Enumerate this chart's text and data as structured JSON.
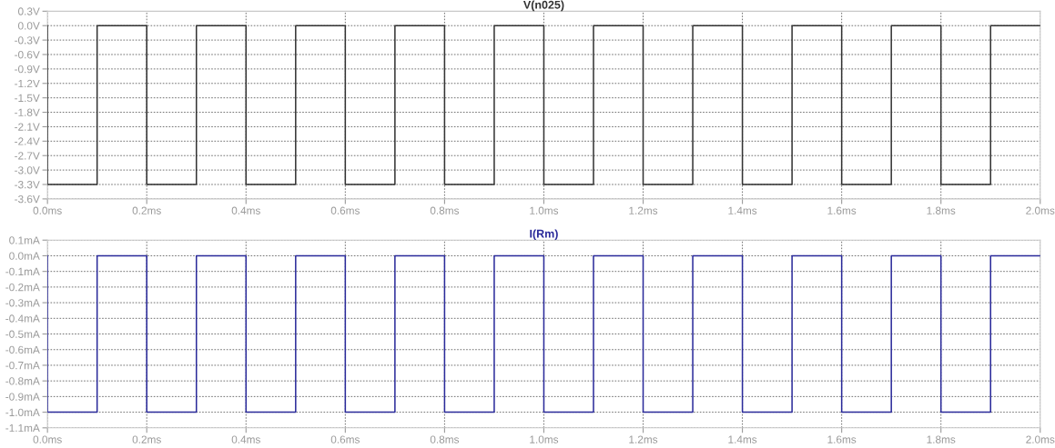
{
  "chart_data": [
    {
      "type": "line",
      "title": "V(n025)",
      "xlim": [
        0,
        2
      ],
      "ylim": [
        -3.6,
        0.3
      ],
      "grid": true,
      "line_style": "solid",
      "xticks": [
        {
          "value": 0,
          "label": "0.0ms"
        },
        {
          "value": 0.2,
          "label": "0.2ms"
        },
        {
          "value": 0.4,
          "label": "0.4ms"
        },
        {
          "value": 0.6,
          "label": "0.6ms"
        },
        {
          "value": 0.8,
          "label": "0.8ms"
        },
        {
          "value": 1.0,
          "label": "1.0ms"
        },
        {
          "value": 1.2,
          "label": "1.2ms"
        },
        {
          "value": 1.4,
          "label": "1.4ms"
        },
        {
          "value": 1.6,
          "label": "1.6ms"
        },
        {
          "value": 1.8,
          "label": "1.8ms"
        },
        {
          "value": 2.0,
          "label": "2.0ms"
        }
      ],
      "yticks": [
        {
          "value": 0.3,
          "label": "0.3V"
        },
        {
          "value": 0.0,
          "label": "0.0V"
        },
        {
          "value": -0.3,
          "label": "-0.3V"
        },
        {
          "value": -0.6,
          "label": "-0.6V"
        },
        {
          "value": -0.9,
          "label": "-0.9V"
        },
        {
          "value": -1.2,
          "label": "-1.2V"
        },
        {
          "value": -1.5,
          "label": "-1.5V"
        },
        {
          "value": -1.8,
          "label": "-1.8V"
        },
        {
          "value": -2.1,
          "label": "-2.1V"
        },
        {
          "value": -2.4,
          "label": "-2.4V"
        },
        {
          "value": -2.7,
          "label": "-2.7V"
        },
        {
          "value": -3.0,
          "label": "-3.0V"
        },
        {
          "value": -3.3,
          "label": "-3.3V"
        },
        {
          "value": -3.6,
          "label": "-3.6V"
        }
      ],
      "series": [
        {
          "color": "#333333",
          "x": [
            0,
            0,
            0.1,
            0.1,
            0.2,
            0.2,
            0.3,
            0.3,
            0.4,
            0.4,
            0.5,
            0.5,
            0.6,
            0.6,
            0.7,
            0.7,
            0.8,
            0.8,
            0.9,
            0.9,
            1.0,
            1.0,
            1.1,
            1.1,
            1.2,
            1.2,
            1.3,
            1.3,
            1.4,
            1.4,
            1.5,
            1.5,
            1.6,
            1.6,
            1.7,
            1.7,
            1.8,
            1.8,
            1.9,
            1.9,
            2.0
          ],
          "values": [
            0,
            -3.3,
            -3.3,
            0,
            0,
            -3.3,
            -3.3,
            0,
            0,
            -3.3,
            -3.3,
            0,
            0,
            -3.3,
            -3.3,
            0,
            0,
            -3.3,
            -3.3,
            0,
            0,
            -3.3,
            -3.3,
            0,
            0,
            -3.3,
            -3.3,
            0,
            0,
            -3.3,
            -3.3,
            0,
            0,
            -3.3,
            -3.3,
            0,
            0,
            -3.3,
            -3.3,
            0,
            0
          ]
        }
      ]
    },
    {
      "type": "line",
      "title": "I(Rm)",
      "xlim": [
        0,
        2
      ],
      "ylim": [
        -1.1,
        0.1
      ],
      "grid": true,
      "line_style": "solid",
      "xticks": [
        {
          "value": 0,
          "label": "0.0ms"
        },
        {
          "value": 0.2,
          "label": "0.2ms"
        },
        {
          "value": 0.4,
          "label": "0.4ms"
        },
        {
          "value": 0.6,
          "label": "0.6ms"
        },
        {
          "value": 0.8,
          "label": "0.8ms"
        },
        {
          "value": 1.0,
          "label": "1.0ms"
        },
        {
          "value": 1.2,
          "label": "1.2ms"
        },
        {
          "value": 1.4,
          "label": "1.4ms"
        },
        {
          "value": 1.6,
          "label": "1.6ms"
        },
        {
          "value": 1.8,
          "label": "1.8ms"
        },
        {
          "value": 2.0,
          "label": "2.0ms"
        }
      ],
      "yticks": [
        {
          "value": 0.1,
          "label": "0.1mA"
        },
        {
          "value": 0.0,
          "label": "0.0mA"
        },
        {
          "value": -0.1,
          "label": "-0.1mA"
        },
        {
          "value": -0.2,
          "label": "-0.2mA"
        },
        {
          "value": -0.3,
          "label": "-0.3mA"
        },
        {
          "value": -0.4,
          "label": "-0.4mA"
        },
        {
          "value": -0.5,
          "label": "-0.5mA"
        },
        {
          "value": -0.6,
          "label": "-0.6mA"
        },
        {
          "value": -0.7,
          "label": "-0.7mA"
        },
        {
          "value": -0.8,
          "label": "-0.8mA"
        },
        {
          "value": -0.9,
          "label": "-0.9mA"
        },
        {
          "value": -1.0,
          "label": "-1.0mA"
        },
        {
          "value": -1.1,
          "label": "-1.1mA"
        }
      ],
      "series": [
        {
          "color": "#2a2a9a",
          "x": [
            0,
            0,
            0.1,
            0.1,
            0.2,
            0.2,
            0.3,
            0.3,
            0.4,
            0.4,
            0.5,
            0.5,
            0.6,
            0.6,
            0.7,
            0.7,
            0.8,
            0.8,
            0.9,
            0.9,
            1.0,
            1.0,
            1.1,
            1.1,
            1.2,
            1.2,
            1.3,
            1.3,
            1.4,
            1.4,
            1.5,
            1.5,
            1.6,
            1.6,
            1.7,
            1.7,
            1.8,
            1.8,
            1.9,
            1.9,
            2.0
          ],
          "values": [
            0,
            -1.0,
            -1.0,
            0,
            0,
            -1.0,
            -1.0,
            0,
            0,
            -1.0,
            -1.0,
            0,
            0,
            -1.0,
            -1.0,
            0,
            0,
            -1.0,
            -1.0,
            0,
            0,
            -1.0,
            -1.0,
            0,
            0,
            -1.0,
            -1.0,
            0,
            0,
            -1.0,
            -1.0,
            0,
            0,
            -1.0,
            -1.0,
            0,
            0,
            -1.0,
            -1.0,
            0,
            0
          ]
        }
      ]
    }
  ]
}
